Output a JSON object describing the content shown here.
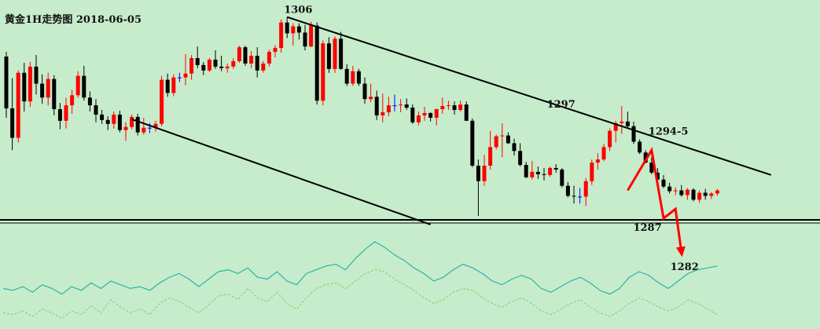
{
  "colors": {
    "background": "#c7eccb",
    "bull": "#ff0000",
    "bear": "#000000",
    "doji": "#0000ff",
    "forecast": "#ff0000",
    "trendline": "#000000",
    "osc_main": "#2ab3a6",
    "osc_signal": "#7fcf6a"
  },
  "chart_data": {
    "type": "candlestick",
    "title": "黄金1H走势图 2018-06-05",
    "ylim": [
      1280,
      1308
    ],
    "candles": [
      [
        1301.1,
        1301.7,
        1293.2,
        1294.4
      ],
      [
        1294.4,
        1298.3,
        1289.0,
        1290.6
      ],
      [
        1290.6,
        1299.3,
        1290.0,
        1299.0
      ],
      [
        1299.0,
        1300.3,
        1294.0,
        1295.3
      ],
      [
        1295.3,
        1300.4,
        1294.6,
        1299.8
      ],
      [
        1299.8,
        1301.3,
        1296.2,
        1297.6
      ],
      [
        1297.6,
        1298.8,
        1295.0,
        1295.8
      ],
      [
        1295.8,
        1299.0,
        1294.8,
        1298.2
      ],
      [
        1298.2,
        1298.7,
        1293.5,
        1294.3
      ],
      [
        1294.3,
        1295.1,
        1291.7,
        1292.8
      ],
      [
        1292.8,
        1295.8,
        1291.8,
        1294.8
      ],
      [
        1294.8,
        1296.8,
        1293.7,
        1296.1
      ],
      [
        1296.1,
        1299.2,
        1295.8,
        1298.6
      ],
      [
        1298.6,
        1299.9,
        1295.4,
        1295.8
      ],
      [
        1295.8,
        1296.6,
        1294.0,
        1294.8
      ],
      [
        1294.8,
        1295.6,
        1292.6,
        1293.6
      ],
      [
        1293.6,
        1294.2,
        1292.4,
        1292.9
      ],
      [
        1292.9,
        1293.4,
        1291.6,
        1292.4
      ],
      [
        1292.4,
        1294.0,
        1291.8,
        1293.6
      ],
      [
        1293.6,
        1294.1,
        1291.3,
        1291.6
      ],
      [
        1291.6,
        1292.6,
        1290.2,
        1292.0
      ],
      [
        1292.0,
        1293.6,
        1291.7,
        1293.3
      ],
      [
        1293.3,
        1293.7,
        1290.9,
        1291.3
      ],
      [
        1291.3,
        1293.2,
        1291.0,
        1291.9
      ],
      [
        1291.9,
        1292.5,
        1291.2,
        1291.9
      ],
      [
        1291.9,
        1292.8,
        1291.4,
        1292.4
      ],
      [
        1292.4,
        1298.6,
        1292.1,
        1298.1
      ],
      [
        1298.1,
        1298.9,
        1295.9,
        1296.4
      ],
      [
        1296.4,
        1298.8,
        1296.0,
        1298.4
      ],
      [
        1298.4,
        1299.0,
        1297.8,
        1298.4
      ],
      [
        1298.4,
        1301.4,
        1297.4,
        1298.9
      ],
      [
        1298.9,
        1301.3,
        1298.1,
        1300.9
      ],
      [
        1300.9,
        1302.4,
        1299.6,
        1300.0
      ],
      [
        1300.0,
        1300.4,
        1298.7,
        1299.3
      ],
      [
        1299.3,
        1300.9,
        1299.1,
        1300.7
      ],
      [
        1300.7,
        1301.9,
        1299.5,
        1299.8
      ],
      [
        1299.8,
        1301.2,
        1299.2,
        1299.6
      ],
      [
        1299.6,
        1300.2,
        1299.0,
        1299.8
      ],
      [
        1299.8,
        1300.9,
        1299.5,
        1300.5
      ],
      [
        1300.5,
        1302.5,
        1300.3,
        1302.3
      ],
      [
        1302.3,
        1302.5,
        1299.9,
        1300.2
      ],
      [
        1300.2,
        1301.8,
        1299.6,
        1301.2
      ],
      [
        1301.2,
        1302.3,
        1298.4,
        1299.3
      ],
      [
        1299.3,
        1300.5,
        1299.0,
        1300.2
      ],
      [
        1300.2,
        1302.0,
        1299.8,
        1301.7
      ],
      [
        1301.7,
        1302.6,
        1301.0,
        1302.2
      ],
      [
        1302.2,
        1305.9,
        1301.6,
        1305.5
      ],
      [
        1305.5,
        1306.2,
        1303.5,
        1304.1
      ],
      [
        1304.1,
        1305.4,
        1302.5,
        1305.0
      ],
      [
        1305.0,
        1305.4,
        1303.3,
        1304.2
      ],
      [
        1304.2,
        1305.2,
        1301.9,
        1302.4
      ],
      [
        1302.4,
        1305.6,
        1302.3,
        1305.1
      ],
      [
        1305.1,
        1305.5,
        1294.9,
        1295.4
      ],
      [
        1295.4,
        1303.2,
        1294.8,
        1302.8
      ],
      [
        1302.8,
        1303.6,
        1299.0,
        1299.5
      ],
      [
        1299.5,
        1303.7,
        1299.0,
        1303.4
      ],
      [
        1303.4,
        1304.3,
        1299.4,
        1299.5
      ],
      [
        1299.5,
        1300.1,
        1297.3,
        1297.6
      ],
      [
        1297.6,
        1299.9,
        1297.3,
        1299.2
      ],
      [
        1299.2,
        1299.5,
        1297.3,
        1297.6
      ],
      [
        1297.6,
        1298.4,
        1295.0,
        1295.6
      ],
      [
        1295.6,
        1297.6,
        1295.2,
        1295.9
      ],
      [
        1295.9,
        1296.7,
        1292.9,
        1293.5
      ],
      [
        1293.5,
        1296.3,
        1292.6,
        1293.9
      ],
      [
        1293.9,
        1295.9,
        1293.4,
        1294.8
      ],
      [
        1294.8,
        1296.2,
        1294.0,
        1294.8
      ],
      [
        1294.8,
        1295.6,
        1293.9,
        1294.9
      ],
      [
        1294.9,
        1295.7,
        1294.2,
        1294.5
      ],
      [
        1294.5,
        1294.9,
        1292.4,
        1292.6
      ],
      [
        1292.6,
        1294.0,
        1292.2,
        1293.5
      ],
      [
        1293.5,
        1294.6,
        1292.8,
        1293.8
      ],
      [
        1293.8,
        1293.9,
        1292.7,
        1293.2
      ],
      [
        1293.2,
        1294.4,
        1292.2,
        1294.3
      ],
      [
        1294.3,
        1295.8,
        1293.7,
        1294.7
      ],
      [
        1294.7,
        1295.4,
        1294.2,
        1294.8
      ],
      [
        1294.8,
        1295.3,
        1293.6,
        1294.2
      ],
      [
        1294.2,
        1295.4,
        1294.0,
        1294.9
      ],
      [
        1294.9,
        1295.3,
        1292.8,
        1292.8
      ],
      [
        1292.8,
        1293.1,
        1286.8,
        1287.0
      ],
      [
        1287.0,
        1287.8,
        1280.5,
        1285.0
      ],
      [
        1285.0,
        1288.4,
        1284.4,
        1287.0
      ],
      [
        1287.0,
        1291.5,
        1286.5,
        1289.4
      ],
      [
        1289.4,
        1291.0,
        1289.1,
        1290.8
      ],
      [
        1290.8,
        1292.5,
        1288.1,
        1290.9
      ],
      [
        1290.9,
        1291.3,
        1289.8,
        1289.9
      ],
      [
        1289.9,
        1290.5,
        1288.3,
        1288.9
      ],
      [
        1288.9,
        1289.9,
        1286.9,
        1287.1
      ],
      [
        1287.1,
        1287.5,
        1285.4,
        1285.5
      ],
      [
        1285.5,
        1287.6,
        1285.2,
        1286.2
      ],
      [
        1286.2,
        1286.9,
        1285.3,
        1285.9
      ],
      [
        1285.9,
        1286.7,
        1285.1,
        1285.8
      ],
      [
        1285.8,
        1286.9,
        1285.6,
        1286.7
      ],
      [
        1286.7,
        1287.2,
        1286.1,
        1286.5
      ],
      [
        1286.5,
        1286.7,
        1284.2,
        1284.4
      ],
      [
        1284.4,
        1284.9,
        1282.9,
        1283.1
      ],
      [
        1283.1,
        1284.4,
        1282.1,
        1283.0
      ],
      [
        1283.0,
        1284.1,
        1282.1,
        1283.0
      ],
      [
        1283.0,
        1285.4,
        1281.8,
        1285.0
      ],
      [
        1285.0,
        1287.8,
        1284.5,
        1287.4
      ],
      [
        1287.4,
        1288.6,
        1286.5,
        1287.8
      ],
      [
        1287.8,
        1289.8,
        1287.6,
        1289.4
      ],
      [
        1289.4,
        1291.8,
        1288.9,
        1291.5
      ],
      [
        1291.5,
        1292.8,
        1290.0,
        1292.5
      ],
      [
        1292.5,
        1294.7,
        1291.1,
        1292.7
      ],
      [
        1292.7,
        1294.0,
        1291.9,
        1292.1
      ],
      [
        1292.1,
        1292.7,
        1289.8,
        1290.1
      ],
      [
        1290.1,
        1290.4,
        1288.5,
        1288.7
      ],
      [
        1288.7,
        1289.0,
        1287.3,
        1287.4
      ],
      [
        1287.4,
        1288.1,
        1285.9,
        1286.1
      ],
      [
        1286.1,
        1286.7,
        1285.0,
        1285.2
      ],
      [
        1285.2,
        1285.8,
        1284.1,
        1284.3
      ],
      [
        1284.3,
        1284.8,
        1283.4,
        1283.7
      ],
      [
        1283.7,
        1284.2,
        1283.2,
        1283.8
      ],
      [
        1283.8,
        1284.5,
        1283.0,
        1283.2
      ],
      [
        1283.2,
        1284.1,
        1282.6,
        1283.9
      ],
      [
        1283.9,
        1284.1,
        1282.4,
        1282.6
      ],
      [
        1282.6,
        1283.8,
        1282.2,
        1283.5
      ],
      [
        1283.5,
        1284.0,
        1282.6,
        1283.1
      ],
      [
        1283.1,
        1283.6,
        1282.7,
        1283.4
      ],
      [
        1283.4,
        1284.0,
        1283.1,
        1283.8
      ]
    ],
    "annotations": [
      {
        "text": "1306",
        "candle": 47,
        "price": 1306.2
      },
      {
        "text": "1297",
        "candle": 91,
        "price": 1294.0
      },
      {
        "text": "1294-5",
        "candle": 108,
        "price": 1290.5
      }
    ],
    "trendlines": [
      {
        "name": "upper-channel-line",
        "from": [
          47,
          1306.2
        ],
        "to": [
          128,
          1285.8
        ]
      },
      {
        "name": "lower-channel-line",
        "from": [
          21,
          1293.0
        ],
        "to": [
          71,
          1279.4
        ]
      },
      {
        "name": "support-line",
        "from": [
          0,
          1280.0
        ],
        "to": [
          129,
          1280.0
        ]
      }
    ],
    "forecast": {
      "path": [
        [
          104,
          1283.8
        ],
        [
          108,
          1289.0
        ],
        [
          110,
          1280.2
        ],
        [
          112,
          1281.4
        ],
        [
          113,
          1275.8
        ]
      ],
      "labels": [
        {
          "text": "1287",
          "candle": 107.3,
          "price": 1279.1
        },
        {
          "text": "1282",
          "candle": 113.5,
          "price": 1274.0
        }
      ]
    },
    "oscillator": {
      "main": [
        40,
        38,
        42,
        36,
        44,
        40,
        34,
        42,
        38,
        46,
        40,
        48,
        44,
        40,
        42,
        38,
        46,
        52,
        56,
        50,
        42,
        50,
        58,
        60,
        56,
        62,
        52,
        50,
        58,
        48,
        44,
        56,
        60,
        64,
        66,
        60,
        72,
        82,
        90,
        84,
        76,
        70,
        62,
        56,
        48,
        52,
        60,
        66,
        62,
        56,
        48,
        44,
        50,
        54,
        50,
        40,
        36,
        42,
        48,
        52,
        46,
        38,
        34,
        40,
        52,
        58,
        54,
        46,
        40,
        48,
        56,
        60,
        62,
        64
      ],
      "signal": [
        14,
        12,
        16,
        10,
        18,
        14,
        8,
        16,
        12,
        22,
        14,
        28,
        20,
        14,
        18,
        12,
        24,
        30,
        26,
        20,
        14,
        22,
        32,
        34,
        28,
        40,
        30,
        26,
        36,
        24,
        18,
        30,
        40,
        44,
        46,
        40,
        48,
        56,
        60,
        58,
        50,
        44,
        38,
        30,
        24,
        28,
        36,
        40,
        38,
        30,
        24,
        20,
        26,
        30,
        24,
        16,
        12,
        18,
        24,
        28,
        20,
        14,
        10,
        16,
        24,
        30,
        26,
        20,
        16,
        20,
        28,
        24,
        18,
        12
      ]
    }
  }
}
